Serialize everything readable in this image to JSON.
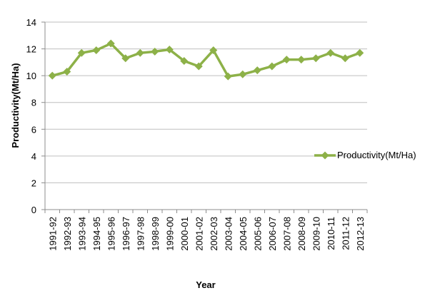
{
  "chart_data": {
    "type": "line",
    "title": "",
    "xlabel": "Year",
    "ylabel": "Productivity(Mt/Ha)",
    "ylim": [
      0,
      14
    ],
    "yticks": [
      0,
      2,
      4,
      6,
      8,
      10,
      12,
      14
    ],
    "grid": "horizontal",
    "legend_position": "right",
    "categories": [
      "1991-92",
      "1992-93",
      "1993-94",
      "1994-95",
      "1995-96",
      "1996-97",
      "1997-98",
      "1998-99",
      "1999-00",
      "2000-01",
      "2001-02",
      "2002-03",
      "2003-04",
      "2004-05",
      "2005-06",
      "2006-07",
      "2007-08",
      "2008-09",
      "2009-10",
      "2010-11",
      "2011-12",
      "2012-13"
    ],
    "series": [
      {
        "name": "Productivity(Mt/Ha)",
        "color": "#8db148",
        "marker": "diamond",
        "values": [
          10.0,
          10.3,
          11.7,
          11.9,
          12.4,
          11.3,
          11.7,
          11.8,
          11.95,
          11.1,
          10.7,
          11.9,
          9.95,
          10.1,
          10.4,
          10.7,
          11.2,
          11.2,
          11.3,
          11.7,
          11.3,
          11.7
        ]
      }
    ]
  }
}
